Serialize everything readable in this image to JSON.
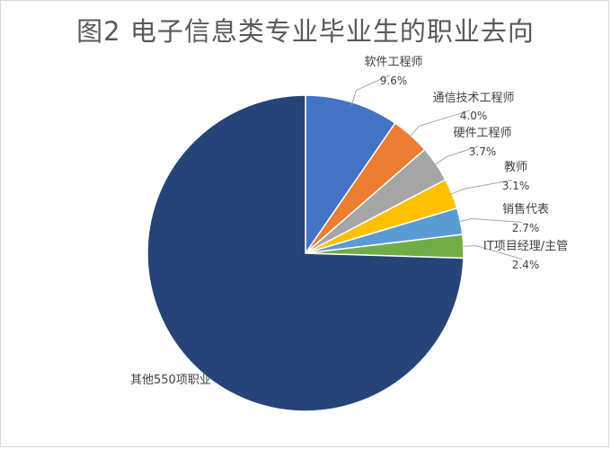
{
  "chart_data": {
    "type": "pie",
    "title": "图2 电子信息类专业毕业生的职业去向",
    "slices": [
      {
        "label": "软件工程师",
        "value": 9.6,
        "value_label": "9.6%",
        "color": "#4472c4"
      },
      {
        "label": "通信技术工程师",
        "value": 4.0,
        "value_label": "4.0%",
        "color": "#ed7d31"
      },
      {
        "label": "硬件工程师",
        "value": 3.7,
        "value_label": "3.7%",
        "color": "#a5a5a5"
      },
      {
        "label": "教师",
        "value": 3.1,
        "value_label": "3.1%",
        "color": "#ffc000"
      },
      {
        "label": "销售代表",
        "value": 2.7,
        "value_label": "2.7%",
        "color": "#5b9bd5"
      },
      {
        "label": "IT项目经理/主管",
        "value": 2.4,
        "value_label": "2.4%",
        "color": "#70ad47"
      },
      {
        "label": "其他550项职业",
        "value": 74.5,
        "value_label": "",
        "color": "#264478"
      }
    ],
    "legend": "none",
    "slice_border_color": "#ffffff"
  }
}
